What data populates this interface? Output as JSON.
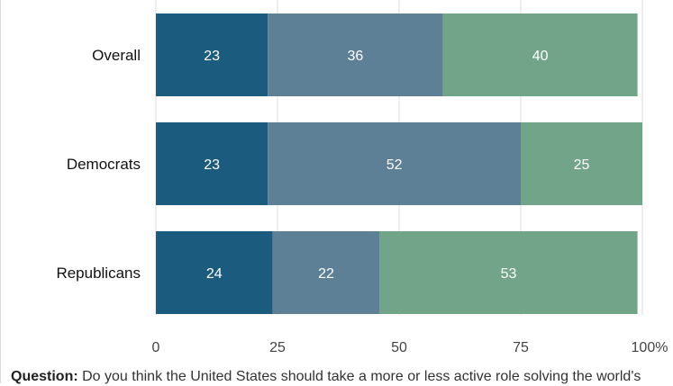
{
  "chart_data": {
    "type": "bar",
    "orientation": "horizontal",
    "stacked": true,
    "categories": [
      "Overall",
      "Democrats",
      "Republicans"
    ],
    "series": [
      {
        "values": [
          23,
          23,
          24
        ],
        "color": "#1b5c7e"
      },
      {
        "values": [
          36,
          52,
          22
        ],
        "color": "#5e8097"
      },
      {
        "values": [
          40,
          25,
          53
        ],
        "color": "#71a488"
      }
    ],
    "x_ticks": [
      "0",
      "25",
      "50",
      "75",
      "100%"
    ],
    "xlim": [
      0,
      100
    ],
    "grid": true,
    "legend": "none"
  },
  "caption": {
    "label": "Question:",
    "text": "Do you think the United States should take a more or less active role solving the world's"
  }
}
